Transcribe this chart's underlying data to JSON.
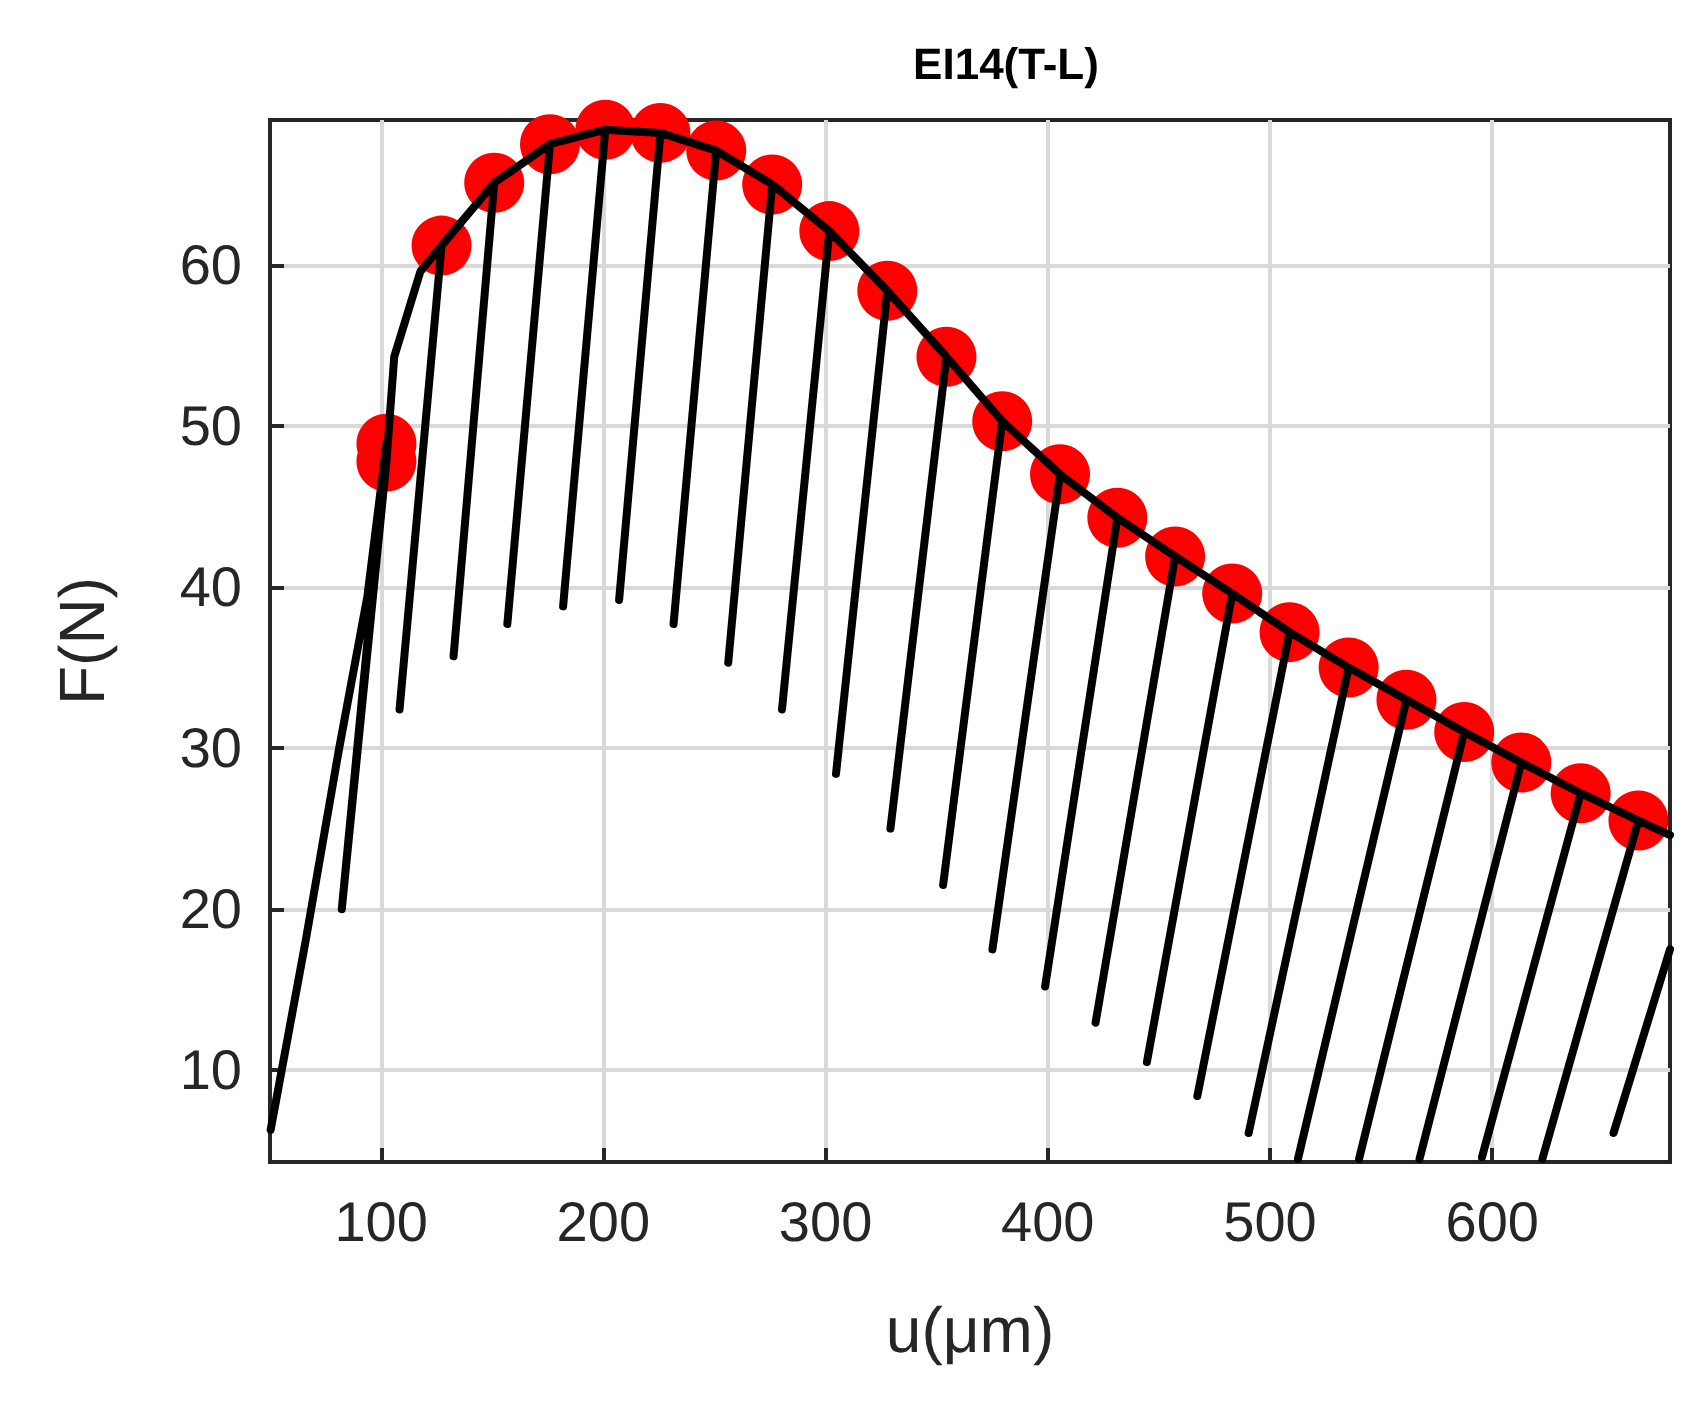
{
  "chart_data": {
    "type": "line",
    "title": "EI14(T-L)",
    "xlabel": "u(μm)",
    "ylabel": "F(N)",
    "xlim": [
      50,
      680
    ],
    "ylim": [
      4.3,
      69
    ],
    "xticks": [
      100,
      200,
      300,
      400,
      500,
      600
    ],
    "yticks": [
      10,
      20,
      30,
      40,
      50,
      60
    ],
    "grid": true,
    "series": [
      {
        "color": "#000000",
        "marker": "none",
        "line_style": "solid",
        "x": [
          50.3,
          66,
          81,
          93.8,
          102.4,
          82.3,
          102.4,
          105.9,
          117.7,
          127.2,
          108.3,
          127.2,
          150.9,
          132.6,
          150.9,
          176.0,
          156.8,
          176.0,
          200.9,
          181.9,
          200.9,
          225.7,
          207.1,
          225.7,
          250.8,
          231.6,
          250.8,
          276.0,
          256.2,
          276.0,
          301.7,
          280.4,
          301.7,
          327.8,
          304.7,
          327.8,
          354.4,
          329.2,
          354.4,
          379.5,
          352.9,
          379.5,
          405.5,
          375.1,
          405.5,
          431.3,
          398.8,
          431.3,
          457.3,
          421.5,
          457.3,
          483.0,
          444.6,
          483.0,
          508.8,
          467.3,
          508.8,
          535.4,
          490.4,
          535.4,
          561.4,
          512.6,
          561.4,
          587.4,
          540.1,
          587.4,
          613.1,
          567.3,
          613.1,
          639.8,
          595.4,
          639.8,
          665.8,
          622.6,
          665.8,
          680,
          667,
          654.6,
          680
        ],
        "values": [
          6.3,
          18,
          29.9,
          39.4,
          48.9,
          20.0,
          47.8,
          54.3,
          59.6,
          61.2,
          32.4,
          61.2,
          65.1,
          35.7,
          65.1,
          67.5,
          37.7,
          67.5,
          68.4,
          38.8,
          68.4,
          68.2,
          39.2,
          68.2,
          67.1,
          37.7,
          67.1,
          65.0,
          35.3,
          65.0,
          62.1,
          32.4,
          62.1,
          58.4,
          28.4,
          58.4,
          54.3,
          25.0,
          54.3,
          50.3,
          21.5,
          50.3,
          47.0,
          17.5,
          47.0,
          44.3,
          15.2,
          44.3,
          41.9,
          12.95,
          41.9,
          39.6,
          10.5,
          39.6,
          37.2,
          8.4,
          37.2,
          35.0,
          6.1,
          35.0,
          33.0,
          4.5,
          33.0,
          31.0,
          4.5,
          31.0,
          29.1,
          4.5,
          29.1,
          27.2,
          4.6,
          27.2,
          25.5,
          4.5,
          25.5,
          24.6,
          null,
          6.1,
          17.5
        ]
      },
      {
        "type": "scatter",
        "color": "#ff0000",
        "marker": "circle",
        "x": [
          102.4,
          102.4,
          127.2,
          150.9,
          176.0,
          200.9,
          225.7,
          250.8,
          276.0,
          301.7,
          327.8,
          354.4,
          379.5,
          405.5,
          431.3,
          457.3,
          483.0,
          508.8,
          535.4,
          561.4,
          587.4,
          613.1,
          639.8,
          665.8
        ],
        "values": [
          48.9,
          47.8,
          61.2,
          65.1,
          67.5,
          68.4,
          68.2,
          67.1,
          65.0,
          62.1,
          58.4,
          54.3,
          50.3,
          47.0,
          44.3,
          41.9,
          39.6,
          37.2,
          35.0,
          33.0,
          31.0,
          29.1,
          27.2,
          25.5
        ]
      }
    ]
  }
}
